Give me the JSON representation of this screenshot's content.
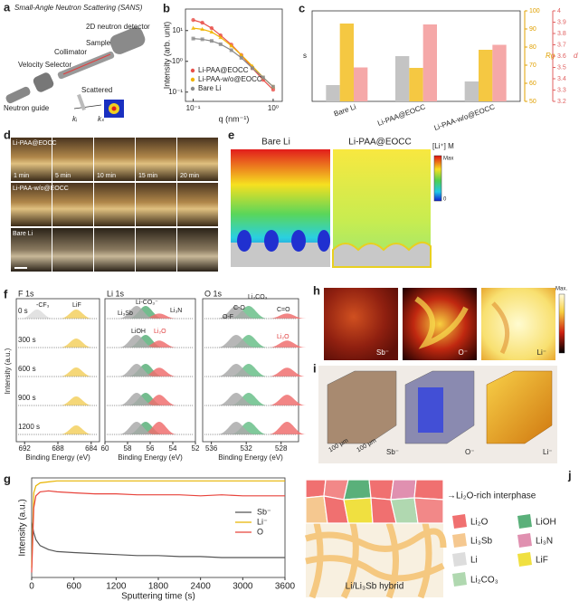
{
  "chart_data": [
    {
      "type": "scatter",
      "title": "b",
      "xlabel": "q (nm⁻¹)",
      "ylabel": "Intensity (arb. unit)",
      "log_x": true,
      "log_y": true,
      "xlim": [
        0.08,
        1.3
      ],
      "ylim": [
        0.05,
        50
      ],
      "xticks": [
        {
          "value": 0.1,
          "label": "10⁻¹"
        },
        {
          "value": 1,
          "label": "10⁰"
        }
      ],
      "yticks": [
        {
          "value": 0.1,
          "label": "10⁻¹"
        },
        {
          "value": 1,
          "label": "10⁰"
        },
        {
          "value": 10,
          "label": "10¹"
        }
      ],
      "legend": "lower left",
      "x": [
        0.1,
        0.13,
        0.17,
        0.22,
        0.3,
        0.4,
        0.55,
        0.75,
        1.0
      ],
      "series": [
        {
          "name": "Li-PAA@EOCC",
          "color": "#e8504a",
          "marker": "circle",
          "values": [
            22,
            18,
            12,
            7,
            3.5,
            1.6,
            0.6,
            0.25,
            0.12
          ]
        },
        {
          "name": "Li-PAA-w/o@EOCC",
          "color": "#f0b400",
          "marker": "triangle",
          "values": [
            12,
            11,
            9,
            6,
            3.2,
            1.6,
            0.7,
            0.3,
            0.15
          ]
        },
        {
          "name": "Bare Li",
          "color": "#8a8a8a",
          "marker": "square",
          "values": [
            5.5,
            5.2,
            4.6,
            3.6,
            2.3,
            1.3,
            0.6,
            0.3,
            0.15
          ]
        }
      ]
    },
    {
      "type": "bar",
      "title": "c",
      "categories": [
        "Bare Li",
        "Li-PAA@EOCC",
        "Li-PAA-w/o@EOCC"
      ],
      "ylabel": "s",
      "ylim": [
        0,
        1
      ],
      "yticks": [],
      "y2label": "Rg",
      "y2lim": [
        50,
        100
      ],
      "y2ticks": [
        50,
        60,
        70,
        80,
        90,
        100
      ],
      "y2color": "#e0a000",
      "y3label": "d",
      "y3lim": [
        3.2,
        4.0
      ],
      "y3ticks": [
        3.2,
        3.3,
        3.4,
        3.5,
        3.6,
        3.7,
        3.8,
        3.9,
        4.0
      ],
      "y3color": "#e06060",
      "series": [
        {
          "color": "#c4c4c4",
          "values": [
            0.18,
            0.5,
            0.22
          ]
        },
        {
          "color": "#f5c842",
          "axis": "y2",
          "values": [
            93,
            68.5,
            78.5
          ]
        },
        {
          "color": "#f5a8a8",
          "axis": "y3",
          "values": [
            3.5,
            3.88,
            3.7
          ]
        }
      ]
    },
    {
      "type": "line",
      "title": "g",
      "xlabel": "Sputtering time (s)",
      "ylabel": "Intensity (a.u.)",
      "xlim": [
        0,
        3600
      ],
      "xticks": [
        0,
        600,
        1200,
        1800,
        2400,
        3000,
        3600
      ],
      "ylim": [
        0,
        1
      ],
      "yticks": [],
      "legend": "upper right",
      "x": [
        0,
        30,
        60,
        120,
        240,
        360,
        600,
        900,
        1200,
        1500,
        1800,
        2100,
        2400,
        2700,
        3000,
        3300,
        3600
      ],
      "series": [
        {
          "name": "Sb⁻",
          "color": "#555555",
          "values": [
            0.55,
            0.45,
            0.38,
            0.32,
            0.28,
            0.26,
            0.25,
            0.24,
            0.23,
            0.22,
            0.22,
            0.21,
            0.21,
            0.2,
            0.2,
            0.2,
            0.2
          ]
        },
        {
          "name": "Li⁻",
          "color": "#e8b400",
          "values": [
            0.1,
            0.85,
            0.92,
            0.95,
            0.96,
            0.97,
            0.97,
            0.97,
            0.97,
            0.97,
            0.97,
            0.97,
            0.97,
            0.97,
            0.97,
            0.97,
            0.97
          ]
        },
        {
          "name": "O",
          "color": "#e8433b",
          "values": [
            0.05,
            0.7,
            0.82,
            0.86,
            0.87,
            0.86,
            0.85,
            0.84,
            0.84,
            0.83,
            0.83,
            0.83,
            0.82,
            0.83,
            0.82,
            0.82,
            0.82
          ]
        }
      ]
    }
  ],
  "panels": {
    "a": {
      "label": "a",
      "title": "Small-Angle Neutron Scattering (SANS)",
      "detector": "2D neutron detector",
      "sample": "Sample",
      "collimator": "Collimator",
      "selector": "Velocity Selector",
      "guide": "Neutron guide",
      "scattered": "Scattered",
      "ki": "kᵢ",
      "ks": "kₛ"
    },
    "d": {
      "label": "d",
      "rows": [
        "Li-PAA@EOCC",
        "Li-PAA-w/o@EOCC",
        "Bare Li"
      ],
      "times": [
        "1 min",
        "5 min",
        "10 min",
        "15 min",
        "20 min"
      ]
    },
    "e": {
      "label": "e",
      "left": "Bare Li",
      "right": "Li-PAA@EOCC",
      "scale_title": "[Li⁺] M",
      "max": "Max",
      "min": "0"
    },
    "f": {
      "label": "f",
      "ylabel": "Intensity (a.u.)",
      "times": [
        "0 s",
        "300 s",
        "600 s",
        "900 s",
        "1200 s"
      ],
      "spectra": [
        {
          "title": "F 1s",
          "xlabel": "Binding Energy (eV)",
          "xlim": [
            693,
            683
          ],
          "xticks": [
            692,
            688,
            684
          ],
          "annotations": [
            "-CF₃",
            "LiF"
          ]
        },
        {
          "title": "Li 1s",
          "xlabel": "Binding Energy (eV)",
          "xlim": [
            60,
            52
          ],
          "xticks": [
            60,
            58,
            56,
            54,
            52
          ],
          "annotations": [
            "Li-CO₃⁻",
            "Li₃Sb",
            "Li₃N",
            "LiOH",
            "Li₂O"
          ]
        },
        {
          "title": "O 1s",
          "xlabel": "Binding Energy (eV)",
          "xlim": [
            537,
            526
          ],
          "xticks": [
            536,
            532,
            528
          ],
          "annotations": [
            "Li₂CO₃",
            "C-O",
            "O-F",
            "C=O",
            "Li₂O"
          ]
        }
      ]
    },
    "h": {
      "label": "h",
      "max": "Max.",
      "maps": [
        "Sb⁻",
        "O⁻",
        "Li⁻"
      ]
    },
    "i": {
      "label": "i",
      "scale": [
        "100 μm",
        "100 μm"
      ],
      "maps": [
        "Sb⁻",
        "O⁻",
        "Li⁻"
      ]
    },
    "j": {
      "label": "j",
      "interphase": "→Li₂O-rich interphase",
      "legend": [
        "Li₂O",
        "LiOH",
        "Li₃Sb",
        "Li₃N",
        "Li",
        "LiF",
        "Li₂CO₃"
      ],
      "hybrid": "Li/Li₃Sb hybrid"
    }
  }
}
